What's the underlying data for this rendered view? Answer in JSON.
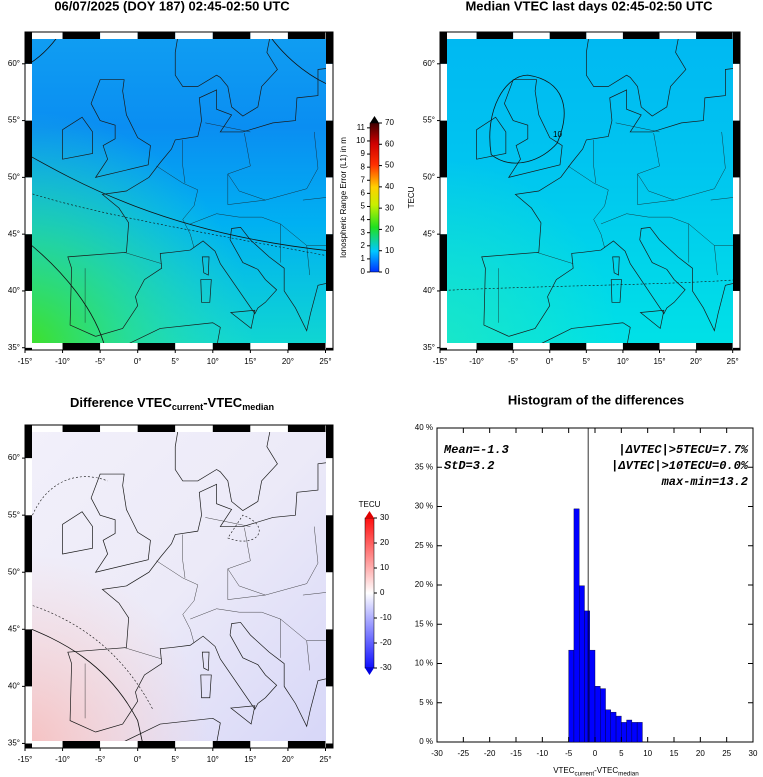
{
  "chart_data": [
    {
      "type": "map",
      "title": "06/07/2025 (DOY 187) 02:45-02:50 UTC",
      "xlim": [
        -15,
        26
      ],
      "ylim": [
        34.8,
        62.8
      ],
      "xticks": [
        {
          "value": -15,
          "label": "-15°"
        },
        {
          "value": -10,
          "label": "-10°"
        },
        {
          "value": -5,
          "label": "-5°"
        },
        {
          "value": 0,
          "label": "0°"
        },
        {
          "value": 5,
          "label": "5°"
        },
        {
          "value": 10,
          "label": "10°"
        },
        {
          "value": 15,
          "label": "15°"
        },
        {
          "value": 20,
          "label": "20°"
        },
        {
          "value": 25,
          "label": "25°"
        }
      ],
      "yticks": [
        {
          "value": 35,
          "label": "35°"
        },
        {
          "value": 40,
          "label": "40°"
        },
        {
          "value": 45,
          "label": "45°"
        },
        {
          "value": 50,
          "label": "50°"
        },
        {
          "value": 55,
          "label": "55°"
        },
        {
          "value": 60,
          "label": "60°"
        }
      ],
      "colorbar": {
        "label": "TECU",
        "lim": [
          0,
          70
        ],
        "ticks": [
          0,
          10,
          20,
          30,
          40,
          50,
          60,
          70
        ],
        "y2label": "Ionospheric Range Error (L1) in m",
        "y2lim": [
          0,
          11.37
        ],
        "y2ticks": [
          0,
          1,
          2,
          3,
          4,
          5,
          6,
          7,
          8,
          9,
          10,
          11
        ]
      }
    },
    {
      "type": "map",
      "title": "Median VTEC last  days 02:45-02:50 UTC",
      "xlim": [
        -15,
        26
      ],
      "ylim": [
        34.8,
        62.8
      ],
      "xticks": [
        {
          "value": -15,
          "label": "-15°"
        },
        {
          "value": -10,
          "label": "-10°"
        },
        {
          "value": -5,
          "label": "-5°"
        },
        {
          "value": 0,
          "label": "0°"
        },
        {
          "value": 5,
          "label": "5°"
        },
        {
          "value": 10,
          "label": "10°"
        },
        {
          "value": 15,
          "label": "15°"
        },
        {
          "value": 20,
          "label": "20°"
        },
        {
          "value": 25,
          "label": "25°"
        }
      ],
      "yticks": [
        {
          "value": 35,
          "label": "35°"
        },
        {
          "value": 40,
          "label": "40°"
        },
        {
          "value": 45,
          "label": "45°"
        },
        {
          "value": 50,
          "label": "50°"
        },
        {
          "value": 55,
          "label": "55°"
        },
        {
          "value": 60,
          "label": "60°"
        }
      ],
      "contour_labels": [
        "10"
      ]
    },
    {
      "type": "map",
      "title": [
        "Difference VTEC",
        "current",
        "-VTEC",
        "median"
      ],
      "xlim": [
        -15,
        26
      ],
      "ylim": [
        34.6,
        62.9
      ],
      "xticks": [
        {
          "value": -15,
          "label": "-15°"
        },
        {
          "value": -10,
          "label": "-10°"
        },
        {
          "value": -5,
          "label": "-5°"
        },
        {
          "value": 0,
          "label": "0°"
        },
        {
          "value": 5,
          "label": "5°"
        },
        {
          "value": 10,
          "label": "10°"
        },
        {
          "value": 15,
          "label": "15°"
        },
        {
          "value": 20,
          "label": "20°"
        },
        {
          "value": 25,
          "label": "25°"
        }
      ],
      "yticks": [
        {
          "value": 35,
          "label": "35°"
        },
        {
          "value": 40,
          "label": "40°"
        },
        {
          "value": 45,
          "label": "45°"
        },
        {
          "value": 50,
          "label": "50°"
        },
        {
          "value": 55,
          "label": "55°"
        },
        {
          "value": 60,
          "label": "60°"
        }
      ],
      "colorbar": {
        "label": "TECU",
        "lim": [
          -30,
          30
        ],
        "ticks": [
          -30,
          -20,
          -10,
          0,
          10,
          20,
          30
        ]
      }
    },
    {
      "type": "histogram",
      "title": "Histogram of the differences",
      "xlabel": [
        "VTEC",
        "current",
        "-VTEC",
        "median"
      ],
      "bins": [
        -5,
        -4,
        -3,
        -2,
        -1,
        0,
        1,
        2,
        3,
        4,
        5,
        6,
        7,
        8,
        9
      ],
      "values": [
        11.7,
        29.7,
        19.9,
        16.7,
        11.7,
        7.1,
        6.8,
        4.1,
        3.8,
        3.3,
        2.5,
        2.8,
        2.5,
        2.5
      ],
      "color": "#0000ff",
      "xlim": [
        -30,
        30
      ],
      "ylim": [
        0,
        40
      ],
      "xticks": [
        -30,
        -25,
        -20,
        -15,
        -10,
        -5,
        0,
        5,
        10,
        15,
        20,
        25,
        30
      ],
      "yticks": [
        {
          "value": 0,
          "label": "0 %"
        },
        {
          "value": 5,
          "label": "5 %"
        },
        {
          "value": 10,
          "label": "10 %"
        },
        {
          "value": 15,
          "label": "15 %"
        },
        {
          "value": 20,
          "label": "20 %"
        },
        {
          "value": 25,
          "label": "25 %"
        },
        {
          "value": 30,
          "label": "30 %"
        },
        {
          "value": 35,
          "label": "35 %"
        },
        {
          "value": 40,
          "label": "40 %"
        }
      ],
      "annotations": [
        {
          "value": -1.3,
          "label": "Mean=-1.3"
        },
        "StD=3.2",
        "|ΔVTEC|>5TECU=7.7%",
        "|ΔVTEC|>10TECU=0.0%",
        "max-min=13.2"
      ]
    }
  ]
}
